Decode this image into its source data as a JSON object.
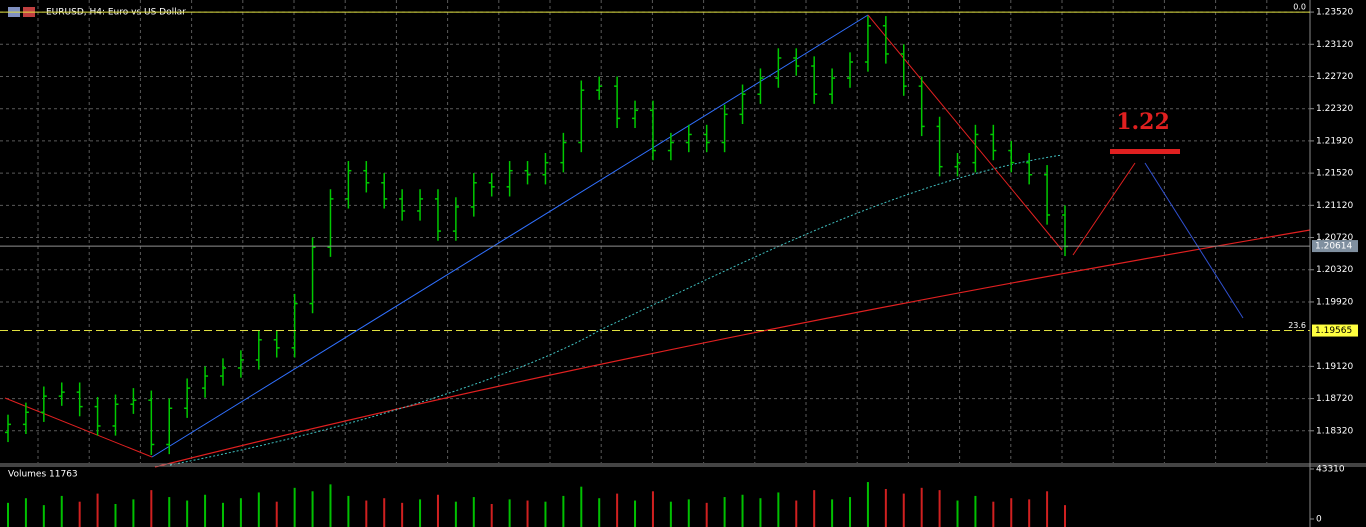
{
  "chart_data": {
    "type": "ohlc",
    "title": "EURUSD, H4:  Euro vs US Dollar",
    "bar_color": "#00c800",
    "bars": [
      [
        1.183,
        1.1852,
        1.1818,
        1.184
      ],
      [
        1.184,
        1.1867,
        1.1828,
        1.1855
      ],
      [
        1.1855,
        1.1887,
        1.1843,
        1.1875
      ],
      [
        1.1875,
        1.1892,
        1.1863,
        1.188
      ],
      [
        1.188,
        1.1892,
        1.185,
        1.1862
      ],
      [
        1.1862,
        1.1874,
        1.1826,
        1.1838
      ],
      [
        1.1838,
        1.1877,
        1.1826,
        1.1865
      ],
      [
        1.1865,
        1.1885,
        1.1853,
        1.187
      ],
      [
        1.187,
        1.1882,
        1.1802,
        1.1815
      ],
      [
        1.1815,
        1.1872,
        1.1803,
        1.186
      ],
      [
        1.186,
        1.1897,
        1.1848,
        1.1885
      ],
      [
        1.1885,
        1.1912,
        1.1873,
        1.19
      ],
      [
        1.19,
        1.1922,
        1.1888,
        1.191
      ],
      [
        1.191,
        1.1932,
        1.1898,
        1.192
      ],
      [
        1.192,
        1.1957,
        1.1908,
        1.1945
      ],
      [
        1.1945,
        1.1957,
        1.1923,
        1.1935
      ],
      [
        1.1935,
        1.2002,
        1.1923,
        1.199
      ],
      [
        1.199,
        1.2072,
        1.1978,
        1.206
      ],
      [
        1.206,
        1.2132,
        1.2048,
        1.212
      ],
      [
        1.212,
        1.2167,
        1.2108,
        1.2155
      ],
      [
        1.2155,
        1.2167,
        1.2128,
        1.214
      ],
      [
        1.214,
        1.2152,
        1.2108,
        1.212
      ],
      [
        1.212,
        1.2132,
        1.2093,
        1.2105
      ],
      [
        1.2105,
        1.2132,
        1.2093,
        1.212
      ],
      [
        1.212,
        1.2132,
        1.2068,
        1.208
      ],
      [
        1.208,
        1.2122,
        1.2068,
        1.211
      ],
      [
        1.211,
        1.2152,
        1.2098,
        1.214
      ],
      [
        1.214,
        1.2152,
        1.2123,
        1.2135
      ],
      [
        1.2135,
        1.2167,
        1.2123,
        1.2155
      ],
      [
        1.2155,
        1.2167,
        1.2138,
        1.215
      ],
      [
        1.215,
        1.2177,
        1.2138,
        1.2165
      ],
      [
        1.2165,
        1.2202,
        1.2153,
        1.219
      ],
      [
        1.219,
        1.2267,
        1.2178,
        1.2255
      ],
      [
        1.2255,
        1.2272,
        1.2243,
        1.226
      ],
      [
        1.226,
        1.2272,
        1.2208,
        1.222
      ],
      [
        1.222,
        1.2242,
        1.2208,
        1.223
      ],
      [
        1.223,
        1.2242,
        1.2168,
        1.218
      ],
      [
        1.218,
        1.2202,
        1.2168,
        1.219
      ],
      [
        1.219,
        1.2212,
        1.2178,
        1.22
      ],
      [
        1.22,
        1.2212,
        1.2178,
        1.219
      ],
      [
        1.219,
        1.2237,
        1.2178,
        1.2225
      ],
      [
        1.2225,
        1.2262,
        1.2213,
        1.225
      ],
      [
        1.225,
        1.2282,
        1.2238,
        1.227
      ],
      [
        1.227,
        1.2307,
        1.2258,
        1.2295
      ],
      [
        1.2295,
        1.2307,
        1.2273,
        1.2285
      ],
      [
        1.2285,
        1.2297,
        1.2238,
        1.225
      ],
      [
        1.225,
        1.2282,
        1.2238,
        1.227
      ],
      [
        1.227,
        1.2302,
        1.2258,
        1.229
      ],
      [
        1.229,
        1.2347,
        1.2278,
        1.2335
      ],
      [
        1.2335,
        1.2347,
        1.2288,
        1.23
      ],
      [
        1.23,
        1.2312,
        1.2248,
        1.226
      ],
      [
        1.226,
        1.2272,
        1.2198,
        1.221
      ],
      [
        1.221,
        1.2222,
        1.2148,
        1.216
      ],
      [
        1.216,
        1.2177,
        1.2148,
        1.2165
      ],
      [
        1.2165,
        1.2212,
        1.2153,
        1.22
      ],
      [
        1.22,
        1.2212,
        1.2168,
        1.218
      ],
      [
        1.218,
        1.2192,
        1.2153,
        1.2165
      ],
      [
        1.2165,
        1.2177,
        1.2138,
        1.215
      ],
      [
        1.215,
        1.2162,
        1.2088,
        1.21
      ],
      [
        1.21,
        1.2112,
        1.2049,
        1.2061
      ]
    ],
    "ylim": [
      1.1792,
      1.2367
    ],
    "yticks": [
      {
        "value": 1.2352,
        "label": "1.23520"
      },
      {
        "value": 1.2312,
        "label": "1.23120"
      },
      {
        "value": 1.2272,
        "label": "1.22720"
      },
      {
        "value": 1.2232,
        "label": "1.22320"
      },
      {
        "value": 1.2192,
        "label": "1.21920"
      },
      {
        "value": 1.2152,
        "label": "1.21520"
      },
      {
        "value": 1.2112,
        "label": "1.21120"
      },
      {
        "value": 1.2072,
        "label": "1.20720"
      },
      {
        "value": 1.2032,
        "label": "1.20320"
      },
      {
        "value": 1.1992,
        "label": "1.19920"
      },
      {
        "value": 1.1912,
        "label": "1.19120"
      },
      {
        "value": 1.1872,
        "label": "1.18720"
      },
      {
        "value": 1.1832,
        "label": "1.18320"
      }
    ],
    "grid": true,
    "price_line": {
      "value": 1.20614,
      "label": "1.20614"
    },
    "fibo_levels": [
      {
        "level": "0.0",
        "value": 1.2352
      },
      {
        "level": "23.6",
        "value": 1.19565,
        "label": "1.19565"
      }
    ],
    "annotation": "1.22",
    "volume_title": "Volumes 11763",
    "volumes": [
      14000,
      18000,
      12000,
      20000,
      15000,
      22000,
      13000,
      17000,
      25000,
      19000,
      16000,
      21000,
      14000,
      18000,
      23000,
      15000,
      27000,
      24000,
      30000,
      20000,
      16000,
      18000,
      14000,
      17000,
      21000,
      15000,
      19000,
      13000,
      17000,
      16000,
      15000,
      20000,
      28000,
      18000,
      22000,
      16000,
      24000,
      15000,
      17000,
      14000,
      19000,
      21000,
      18000,
      23000,
      16000,
      25000,
      17000,
      19000,
      32000,
      26000,
      22000,
      27000,
      25000,
      16000,
      20000,
      15000,
      18000,
      17000,
      24000,
      12000
    ],
    "vlim": [
      0,
      43310
    ],
    "vticks": [
      43310,
      0
    ]
  }
}
